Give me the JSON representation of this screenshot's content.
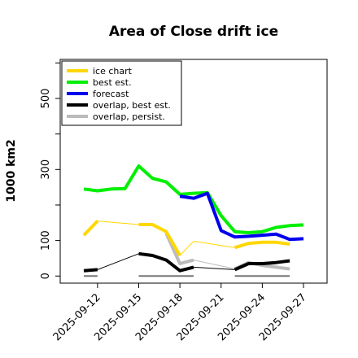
{
  "chart_data": {
    "type": "line",
    "title": "Area of Close drift ice",
    "ylabel": "1000 km2",
    "xlabel": "",
    "ylim": [
      -20,
      610
    ],
    "x_dates": [
      "2025-09-11",
      "2025-09-12",
      "2025-09-13",
      "2025-09-14",
      "2025-09-15",
      "2025-09-16",
      "2025-09-17",
      "2025-09-18",
      "2025-09-19",
      "2025-09-20",
      "2025-09-21",
      "2025-09-22",
      "2025-09-23",
      "2025-09-24",
      "2025-09-25",
      "2025-09-26",
      "2025-09-27"
    ],
    "x_ticks": [
      {
        "label": "2025-09-12",
        "value": "2025-09-12",
        "color": "#000000"
      },
      {
        "label": "2025-09-15",
        "value": "2025-09-15",
        "color": "#000000"
      },
      {
        "label": "2025-09-18",
        "value": "2025-09-18",
        "color": "#228B22"
      },
      {
        "label": "2025-09-21",
        "value": "2025-09-21",
        "color": "#000000"
      },
      {
        "label": "2025-09-24",
        "value": "2025-09-24",
        "color": "#000000"
      },
      {
        "label": "2025-09-27",
        "value": "2025-09-27",
        "color": "#000000"
      }
    ],
    "y_ticks": [
      0,
      100,
      300,
      500
    ],
    "legend": {
      "placement": "top-left",
      "entries": [
        {
          "name": "ice chart",
          "color": "#FFD700"
        },
        {
          "name": "best est.",
          "color": "#00EE00"
        },
        {
          "name": "forecast",
          "color": "#0000EE"
        },
        {
          "name": "overlap, best est.",
          "color": "#000000"
        },
        {
          "name": "overlap, persist.",
          "color": "#BBBBBB"
        }
      ]
    },
    "series": [
      {
        "name": "ice chart",
        "color": "#FFD700",
        "segments": [
          {
            "style": "thick",
            "points": [
              [
                "2025-09-11",
                115
              ],
              [
                "2025-09-12",
                155
              ]
            ]
          },
          {
            "style": "thin",
            "points": [
              [
                "2025-09-12",
                155
              ],
              [
                "2025-09-15",
                145
              ]
            ]
          },
          {
            "style": "thick",
            "points": [
              [
                "2025-09-15",
                145
              ],
              [
                "2025-09-16",
                145
              ],
              [
                "2025-09-17",
                125
              ],
              [
                "2025-09-18",
                58
              ]
            ]
          },
          {
            "style": "thin",
            "points": [
              [
                "2025-09-18",
                58
              ],
              [
                "2025-09-19",
                98
              ]
            ]
          },
          {
            "style": "thin",
            "points": [
              [
                "2025-09-19",
                98
              ],
              [
                "2025-09-22",
                80
              ]
            ]
          },
          {
            "style": "thick",
            "points": [
              [
                "2025-09-22",
                80
              ],
              [
                "2025-09-23",
                92
              ],
              [
                "2025-09-24",
                95
              ],
              [
                "2025-09-25",
                95
              ],
              [
                "2025-09-26",
                90
              ]
            ]
          }
        ]
      },
      {
        "name": "best est.",
        "color": "#00EE00",
        "segments": [
          {
            "style": "thick",
            "points": [
              [
                "2025-09-11",
                245
              ],
              [
                "2025-09-12",
                240
              ],
              [
                "2025-09-13",
                245
              ],
              [
                "2025-09-14",
                246
              ],
              [
                "2025-09-15",
                310
              ],
              [
                "2025-09-16",
                275
              ],
              [
                "2025-09-17",
                265
              ],
              [
                "2025-09-18",
                230
              ],
              [
                "2025-09-19",
                233
              ],
              [
                "2025-09-20",
                235
              ],
              [
                "2025-09-21",
                170
              ],
              [
                "2025-09-22",
                125
              ],
              [
                "2025-09-23",
                122
              ],
              [
                "2025-09-24",
                125
              ],
              [
                "2025-09-25",
                137
              ],
              [
                "2025-09-26",
                142
              ],
              [
                "2025-09-27",
                144
              ]
            ]
          }
        ]
      },
      {
        "name": "forecast",
        "color": "#0000EE",
        "segments": [
          {
            "style": "thick",
            "points": [
              [
                "2025-09-18",
                225
              ],
              [
                "2025-09-19",
                219
              ],
              [
                "2025-09-20",
                233
              ],
              [
                "2025-09-21",
                128
              ],
              [
                "2025-09-22",
                110
              ],
              [
                "2025-09-23",
                112
              ],
              [
                "2025-09-24",
                115
              ],
              [
                "2025-09-25",
                118
              ],
              [
                "2025-09-26",
                103
              ],
              [
                "2025-09-27",
                105
              ]
            ]
          }
        ]
      },
      {
        "name": "overlap, best est.",
        "color": "#000000",
        "segments": [
          {
            "style": "thick",
            "points": [
              [
                "2025-09-11",
                15
              ],
              [
                "2025-09-12",
                18
              ]
            ]
          },
          {
            "style": "thin",
            "points": [
              [
                "2025-09-12",
                18
              ],
              [
                "2025-09-15",
                63
              ]
            ]
          },
          {
            "style": "thick",
            "points": [
              [
                "2025-09-15",
                63
              ],
              [
                "2025-09-16",
                58
              ],
              [
                "2025-09-17",
                45
              ],
              [
                "2025-09-18",
                15
              ],
              [
                "2025-09-19",
                25
              ]
            ]
          },
          {
            "style": "thin",
            "points": [
              [
                "2025-09-19",
                25
              ],
              [
                "2025-09-22",
                18
              ]
            ]
          },
          {
            "style": "thick",
            "points": [
              [
                "2025-09-22",
                18
              ],
              [
                "2025-09-23",
                35
              ],
              [
                "2025-09-24",
                35
              ],
              [
                "2025-09-25",
                38
              ],
              [
                "2025-09-26",
                43
              ]
            ]
          }
        ]
      },
      {
        "name": "overlap, persist.",
        "color": "#BBBBBB",
        "segments": [
          {
            "style": "thick",
            "points": [
              [
                "2025-09-17",
                120
              ],
              [
                "2025-09-18",
                35
              ],
              [
                "2025-09-19",
                45
              ]
            ]
          },
          {
            "style": "thin",
            "points": [
              [
                "2025-09-19",
                45
              ],
              [
                "2025-09-22",
                20
              ]
            ]
          },
          {
            "style": "thick",
            "points": [
              [
                "2025-09-22",
                20
              ],
              [
                "2025-09-23",
                38
              ],
              [
                "2025-09-24",
                30
              ],
              [
                "2025-09-25",
                25
              ],
              [
                "2025-09-26",
                20
              ]
            ]
          }
        ]
      }
    ],
    "baseline_bars": [
      {
        "from": "2025-09-11",
        "to": "2025-09-12",
        "value": 0,
        "color": "#777777"
      },
      {
        "from": "2025-09-15",
        "to": "2025-09-19",
        "value": 0,
        "color": "#777777"
      },
      {
        "from": "2025-09-22",
        "to": "2025-09-26",
        "value": 0,
        "color": "#777777"
      }
    ]
  }
}
